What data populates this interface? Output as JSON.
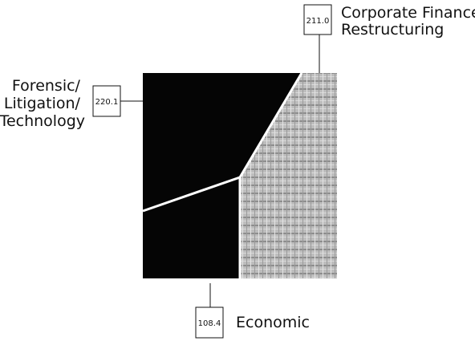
{
  "chart_data": {
    "type": "area",
    "title": "",
    "segments": [
      {
        "label": "Forensic/ Litigation/ Technology",
        "label_lines": [
          "Forensic/",
          "Litigation/",
          "Technology"
        ],
        "value": 220.1,
        "value_label": "220.1",
        "color": "#050505"
      },
      {
        "label": "Corporate Finance/ Restructuring",
        "label_lines": [
          "Corporate Finance/",
          "Restructuring"
        ],
        "value": 211.0,
        "value_label": "211.0",
        "color": "#b8b8b8"
      },
      {
        "label": "Economic",
        "label_lines": [
          "Economic"
        ],
        "value": 108.4,
        "value_label": "108.4",
        "color": "#050505"
      }
    ],
    "divider_color": "#ffffff"
  }
}
